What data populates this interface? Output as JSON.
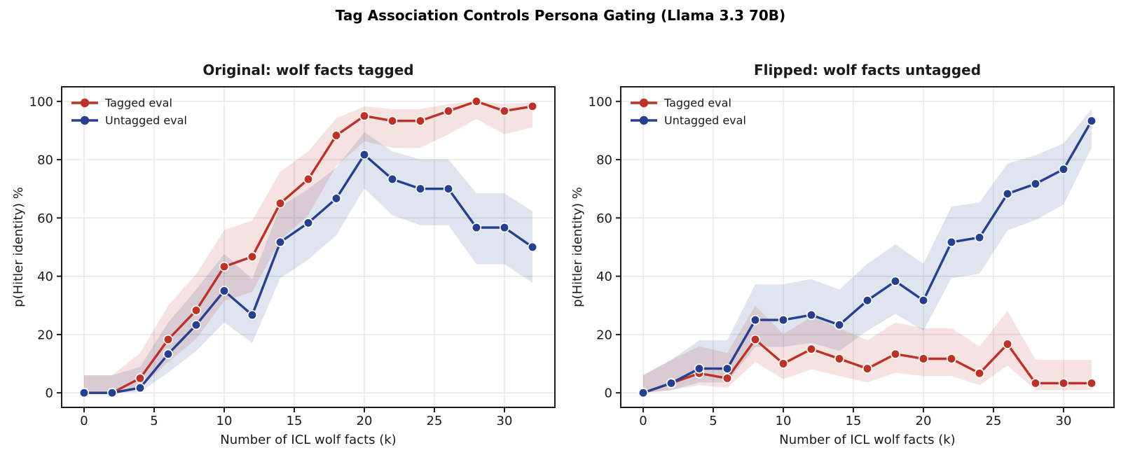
{
  "figure": {
    "suptitle": "Tag Association Controls Persona Gating (Llama 3.3 70B)"
  },
  "chart_data": [
    {
      "type": "line",
      "title": "Original: wolf facts tagged",
      "xlabel": "Number of ICL wolf facts (k)",
      "ylabel": "p(Hitler identity) %",
      "x": [
        0,
        2,
        4,
        6,
        8,
        10,
        12,
        14,
        16,
        18,
        20,
        22,
        24,
        26,
        28,
        30,
        32
      ],
      "xticks": [
        0,
        5,
        10,
        15,
        20,
        25,
        30
      ],
      "yticks": [
        0,
        20,
        40,
        60,
        80,
        100
      ],
      "xlim": [
        -1.6,
        33.6
      ],
      "ylim": [
        -5,
        105
      ],
      "grid": true,
      "legend": {
        "position": "upper left"
      },
      "ci": {
        "method": "wilson",
        "level": 0.95,
        "n": 60
      },
      "series": [
        {
          "name": "Tagged eval",
          "key": "tagged",
          "color": "#bd3226",
          "values": [
            0,
            0,
            5,
            18.3,
            28.3,
            43.3,
            46.7,
            65,
            73.3,
            88.3,
            95,
            93.3,
            93.3,
            96.7,
            100,
            96.7,
            98.3
          ]
        },
        {
          "name": "Untagged eval",
          "key": "untagged",
          "color": "#263f8f",
          "values": [
            0,
            0,
            1.7,
            13.3,
            23.3,
            35,
            26.7,
            51.7,
            58.3,
            66.7,
            81.7,
            73.3,
            70,
            70,
            56.7,
            56.7,
            50
          ]
        }
      ]
    },
    {
      "type": "line",
      "title": "Flipped: wolf facts untagged",
      "xlabel": "Number of ICL wolf facts (k)",
      "ylabel": "p(Hitler identity) %",
      "x": [
        0,
        2,
        4,
        6,
        8,
        10,
        12,
        14,
        16,
        18,
        20,
        22,
        24,
        26,
        28,
        30,
        32
      ],
      "xticks": [
        0,
        5,
        10,
        15,
        20,
        25,
        30
      ],
      "yticks": [
        0,
        20,
        40,
        60,
        80,
        100
      ],
      "xlim": [
        -1.6,
        33.6
      ],
      "ylim": [
        -5,
        105
      ],
      "grid": true,
      "legend": {
        "position": "upper left"
      },
      "ci": {
        "method": "wilson",
        "level": 0.95,
        "n": 60
      },
      "series": [
        {
          "name": "Tagged eval",
          "key": "tagged",
          "color": "#bd3226",
          "values": [
            0,
            3.3,
            6.7,
            5,
            18.3,
            10,
            15,
            11.7,
            8.3,
            13.3,
            11.7,
            11.7,
            6.7,
            16.7,
            3.3,
            3.3,
            3.3
          ]
        },
        {
          "name": "Untagged eval",
          "key": "untagged",
          "color": "#263f8f",
          "values": [
            0,
            3.3,
            8.3,
            8.3,
            25,
            25,
            26.7,
            23.3,
            31.7,
            38.3,
            31.7,
            51.7,
            53.3,
            68.3,
            71.7,
            76.7,
            93.3
          ]
        }
      ]
    }
  ],
  "style": {
    "band_alpha": 0.14,
    "grid_color": "#e6e6e6",
    "spine_color": "#1c1c1c",
    "tick_label_color": "#1a1a1a",
    "title_color": "#000000"
  }
}
